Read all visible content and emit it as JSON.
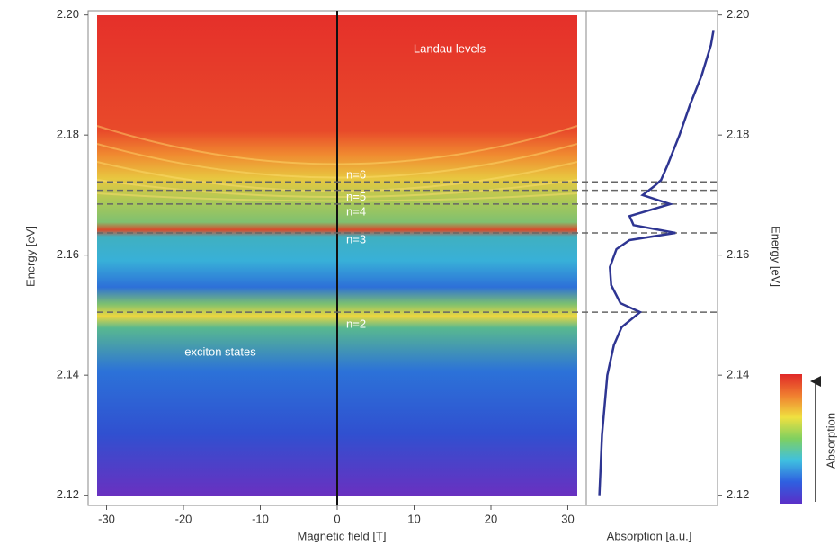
{
  "chart_data": [
    {
      "type": "heatmap",
      "xlabel": "Magnetic field [T]",
      "ylabel": "Energy [eV]",
      "xlim": [
        -32.4,
        32.4
      ],
      "ylim": [
        2.1183,
        2.2007
      ],
      "xticks": [
        -30,
        -20,
        -10,
        0,
        10,
        20,
        30
      ],
      "yticks": [
        2.12,
        2.14,
        2.16,
        2.18,
        {
          "value": 2.2,
          "label": "2.20"
        }
      ],
      "levels": [
        {
          "label": "n=6",
          "value": 2.1722
        },
        {
          "label": "n=5",
          "value": 2.1708
        },
        {
          "label": "n=4",
          "value": 2.1685
        },
        {
          "label": "n=3",
          "value": 2.1637
        },
        {
          "label": "n=2",
          "value": 2.1505
        }
      ],
      "annotations": [
        "Landau levels",
        "exciton states"
      ],
      "colorbar": {
        "label": "Absorption",
        "colors": [
          "#5a2fc8",
          "#2f5fe0",
          "#3fc0e0",
          "#7fd060",
          "#f0e040",
          "#f08030",
          "#e02828"
        ]
      }
    },
    {
      "type": "line",
      "xlabel": "Absorption [a.u.]",
      "ylabel": "Energy [eV]",
      "color": "#2e3592",
      "xlim": [
        0,
        1
      ],
      "ylim": [
        2.1183,
        2.2007
      ],
      "yticks": [
        2.12,
        2.14,
        2.16,
        2.18,
        {
          "value": 2.2,
          "label": "2.20"
        }
      ],
      "y": [
        2.12,
        2.13,
        2.14,
        2.145,
        2.148,
        2.1505,
        2.152,
        2.155,
        2.158,
        2.161,
        2.1625,
        2.1637,
        2.165,
        2.1665,
        2.1685,
        2.17,
        2.1715,
        2.1725,
        2.175,
        2.18,
        2.185,
        2.19,
        2.195,
        2.1975
      ],
      "values": [
        0.1,
        0.12,
        0.16,
        0.21,
        0.27,
        0.41,
        0.26,
        0.19,
        0.18,
        0.23,
        0.33,
        0.68,
        0.36,
        0.33,
        0.64,
        0.43,
        0.52,
        0.57,
        0.62,
        0.71,
        0.79,
        0.88,
        0.95,
        0.97
      ]
    }
  ]
}
